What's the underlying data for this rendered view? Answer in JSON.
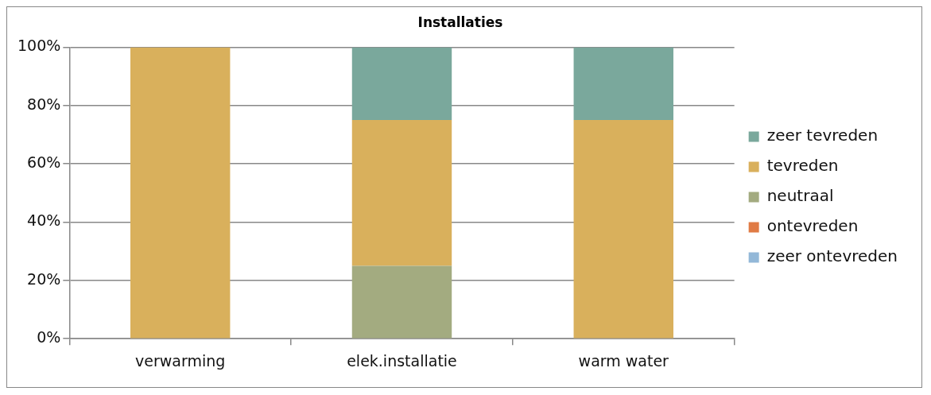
{
  "chart_data": {
    "type": "bar",
    "title": "Installaties",
    "stacked": true,
    "categories": [
      "verwarming",
      "elek.installatie",
      "warm water"
    ],
    "series": [
      {
        "name": "zeer ontevreden",
        "color": "#93b8d8",
        "values": [
          0,
          0,
          0
        ]
      },
      {
        "name": "ontevreden",
        "color": "#e07b45",
        "values": [
          0,
          0,
          0
        ]
      },
      {
        "name": "neutraal",
        "color": "#a3ab80",
        "values": [
          0,
          25,
          0
        ]
      },
      {
        "name": "tevreden",
        "color": "#d9b05c",
        "values": [
          100,
          50,
          75
        ]
      },
      {
        "name": "zeer tevreden",
        "color": "#7aa89c",
        "values": [
          0,
          25,
          25
        ]
      }
    ],
    "ylim": [
      0,
      100
    ],
    "yticks": [
      {
        "value": 0,
        "label": "0%"
      },
      {
        "value": 20,
        "label": "20%"
      },
      {
        "value": 40,
        "label": "40%"
      },
      {
        "value": 60,
        "label": "60%"
      },
      {
        "value": 80,
        "label": "80%"
      },
      {
        "value": 100,
        "label": "100%"
      }
    ],
    "grid": "y",
    "legend": "right"
  }
}
